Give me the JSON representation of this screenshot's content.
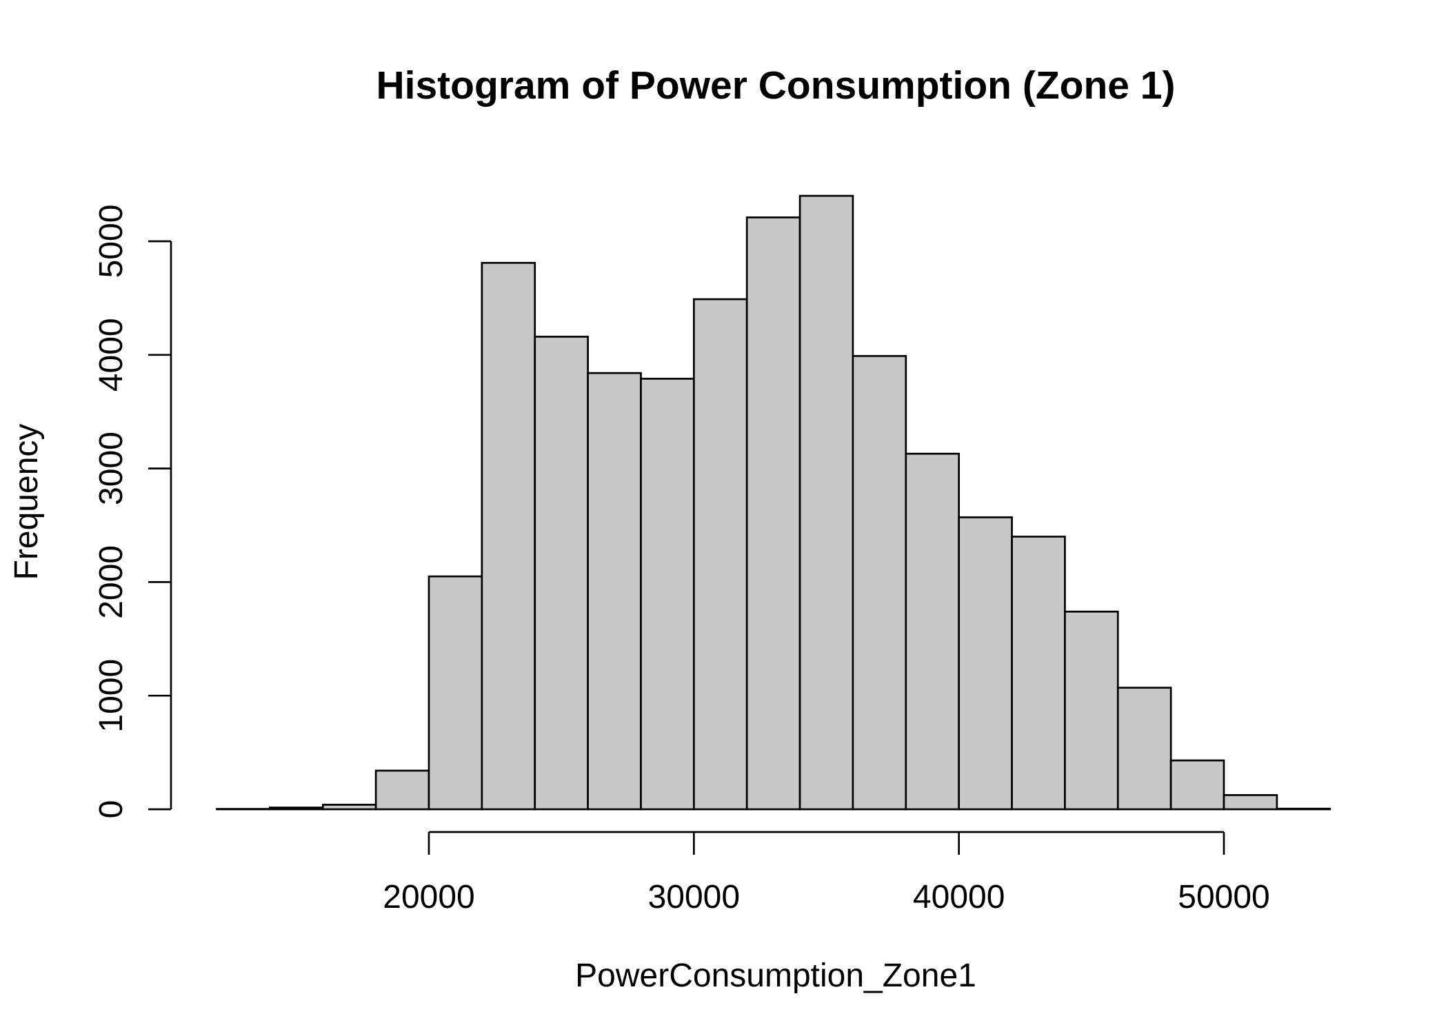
{
  "chart_data": {
    "type": "bar",
    "title": "Histogram of Power Consumption (Zone 1)",
    "xlabel": "PowerConsumption_Zone1",
    "ylabel": "Frequency",
    "bin_edges": [
      12000,
      14000,
      16000,
      18000,
      20000,
      22000,
      24000,
      26000,
      28000,
      30000,
      32000,
      34000,
      36000,
      38000,
      40000,
      42000,
      44000,
      46000,
      48000,
      50000,
      52000,
      54000
    ],
    "values": [
      3,
      15,
      40,
      340,
      2050,
      4810,
      4160,
      3840,
      3790,
      4490,
      5210,
      5400,
      3990,
      3130,
      2570,
      2400,
      1740,
      1070,
      430,
      125,
      5
    ],
    "xlim": [
      12000,
      54000
    ],
    "ylim": [
      0,
      5400
    ],
    "xticks": [
      20000,
      30000,
      40000,
      50000
    ],
    "xtick_labels": [
      "20000",
      "30000",
      "40000",
      "50000"
    ],
    "yticks": [
      0,
      1000,
      2000,
      3000,
      4000,
      5000
    ],
    "ytick_labels": [
      "0",
      "1000",
      "2000",
      "3000",
      "4000",
      "5000"
    ],
    "bar_color": "#c8c8c8",
    "edge_color": "#000000",
    "grid": false,
    "legend": false
  }
}
